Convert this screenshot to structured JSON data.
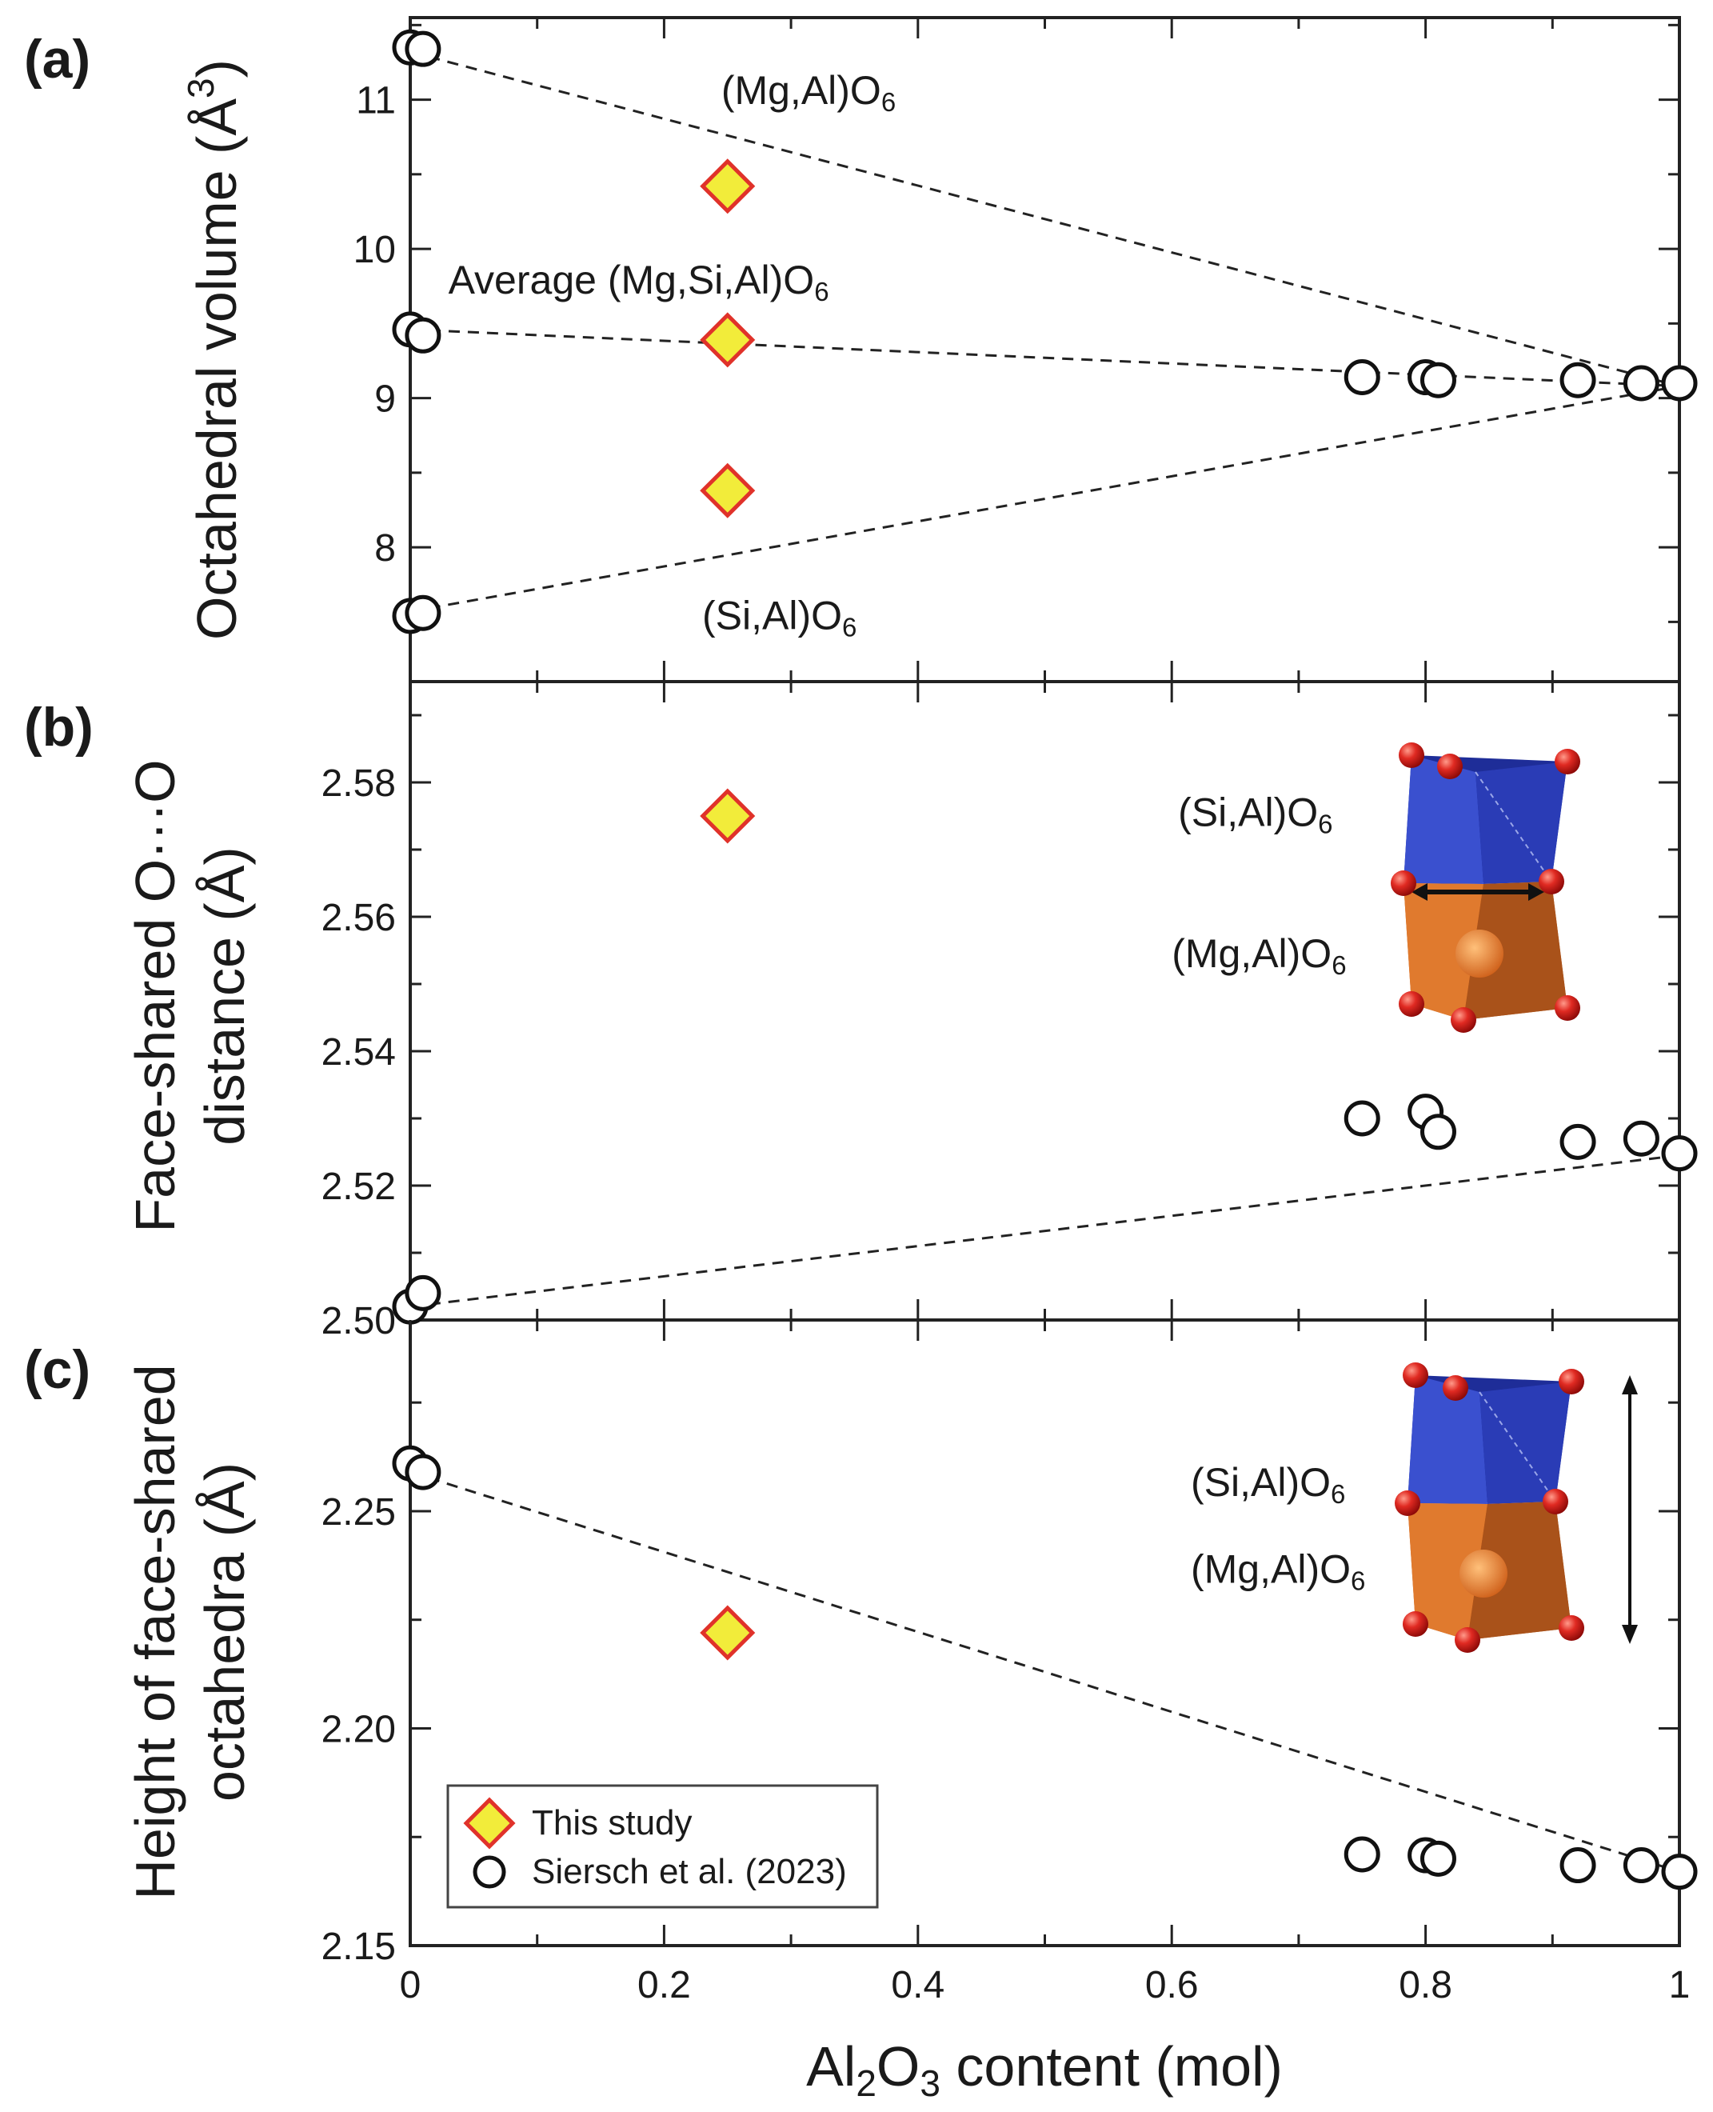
{
  "chart_data": [
    {
      "panel": "(a)",
      "type": "scatter",
      "ylabel": "Octahedral volume (Å³)",
      "xlim": [
        0,
        1
      ],
      "ylim": [
        7.1,
        11.55
      ],
      "yticks": [
        8,
        9,
        10,
        11
      ],
      "yminor": [
        7.5,
        8.5,
        9.5,
        10.5,
        11.5
      ],
      "series": [
        {
          "name": "This study",
          "marker": "diamond",
          "points": [
            [
              0.25,
              10.42
            ],
            [
              0.25,
              9.39
            ],
            [
              0.25,
              8.38
            ]
          ]
        },
        {
          "name": "Siersch et al. (2023)",
          "marker": "circle",
          "points": [
            [
              0,
              11.35
            ],
            [
              0.01,
              11.34
            ],
            [
              0,
              9.46
            ],
            [
              0.01,
              9.42
            ],
            [
              0,
              7.54
            ],
            [
              0.01,
              7.56
            ],
            [
              0.75,
              9.14
            ],
            [
              0.8,
              9.14
            ],
            [
              0.81,
              9.12
            ],
            [
              0.92,
              9.12
            ],
            [
              0.97,
              9.1
            ],
            [
              1.0,
              9.1
            ]
          ]
        }
      ],
      "fits": [
        {
          "x": [
            0,
            1
          ],
          "y": [
            11.32,
            9.08
          ]
        },
        {
          "x": [
            0,
            1
          ],
          "y": [
            9.46,
            9.08
          ]
        },
        {
          "x": [
            0,
            1
          ],
          "y": [
            7.57,
            9.08
          ]
        }
      ],
      "annotations": [
        {
          "main": "(Mg,Al)O",
          "sub": "6",
          "x": 0.245,
          "y": 10.97
        },
        {
          "main": "Average (Mg,Si,Al)O",
          "sub": "6",
          "x": 0.03,
          "y": 9.7
        },
        {
          "main": "(Si,Al)O",
          "sub": "6",
          "x": 0.23,
          "y": 7.45
        }
      ]
    },
    {
      "panel": "(b)",
      "type": "scatter",
      "ylabel": [
        "Face-shared O···O",
        "distance (Å)"
      ],
      "xlim": [
        0,
        1
      ],
      "ylim": [
        2.5,
        2.595
      ],
      "yticks": [
        2.5,
        2.52,
        2.54,
        2.56,
        2.58
      ],
      "yminor": [
        2.51,
        2.53,
        2.55,
        2.57,
        2.59
      ],
      "series": [
        {
          "name": "This study",
          "marker": "diamond",
          "points": [
            [
              0.25,
              2.575
            ]
          ]
        },
        {
          "name": "Siersch et al. (2023)",
          "marker": "circle",
          "points": [
            [
              0,
              2.502
            ],
            [
              0.01,
              2.504
            ],
            [
              0.75,
              2.53
            ],
            [
              0.8,
              2.531
            ],
            [
              0.81,
              2.528
            ],
            [
              0.92,
              2.5265
            ],
            [
              0.97,
              2.527
            ],
            [
              1.0,
              2.5248
            ]
          ]
        }
      ],
      "fits": [
        {
          "x": [
            0,
            1
          ],
          "y": [
            2.502,
            2.5245
          ]
        }
      ],
      "annotations": [
        {
          "main": "(Si,Al)O",
          "sub": "6",
          "x": 0.605,
          "y": 2.5735
        },
        {
          "main": "(Mg,Al)O",
          "sub": "6",
          "x": 0.6,
          "y": 2.5525
        }
      ]
    },
    {
      "panel": "(c)",
      "type": "scatter",
      "ylabel": [
        "Height of face-shared",
        "octahedra (Å)"
      ],
      "xlabel": {
        "parts": [
          "Al",
          "2",
          "O",
          "3",
          " content (mol)"
        ]
      },
      "xlim": [
        0,
        1
      ],
      "ylim": [
        2.15,
        2.294
      ],
      "xticks": [
        0,
        0.2,
        0.4,
        0.6,
        0.8,
        1
      ],
      "xticklabels": [
        "0",
        "0.2",
        "0.4",
        "0.6",
        "0.8",
        "1"
      ],
      "xminor": [
        0.1,
        0.3,
        0.5,
        0.7,
        0.9
      ],
      "yticks": [
        2.15,
        2.2,
        2.25
      ],
      "yminor": [
        2.175,
        2.225,
        2.275
      ],
      "series": [
        {
          "name": "This study",
          "marker": "diamond",
          "points": [
            [
              0.25,
              2.222
            ]
          ]
        },
        {
          "name": "Siersch et al. (2023)",
          "marker": "circle",
          "points": [
            [
              0,
              2.261
            ],
            [
              0.01,
              2.259
            ],
            [
              0.75,
              2.171
            ],
            [
              0.8,
              2.1708
            ],
            [
              0.81,
              2.17
            ],
            [
              0.92,
              2.1685
            ],
            [
              0.97,
              2.1685
            ],
            [
              1.0,
              2.167
            ]
          ]
        }
      ],
      "fits": [
        {
          "x": [
            0,
            1
          ],
          "y": [
            2.259,
            2.167
          ]
        }
      ],
      "annotations": [
        {
          "main": "(Si,Al)O",
          "sub": "6",
          "x": 0.615,
          "y": 2.2535
        },
        {
          "main": "(Mg,Al)O",
          "sub": "6",
          "x": 0.615,
          "y": 2.2335
        }
      ],
      "legend": {
        "location": "lower-left",
        "entries": [
          "This study",
          "Siersch et al. (2023)"
        ]
      }
    }
  ],
  "colors": {
    "diamond_fill": "#f2ec3a",
    "diamond_edge": "#e0322a",
    "axis": "#222222",
    "si_polyhedron": "#2c3fb0",
    "mg_polyhedron": "#d9702a",
    "oxygen": "#d21a1a"
  },
  "decor_icons": [
    "octahedra-pair-icon",
    "octahedra-pair-icon"
  ]
}
